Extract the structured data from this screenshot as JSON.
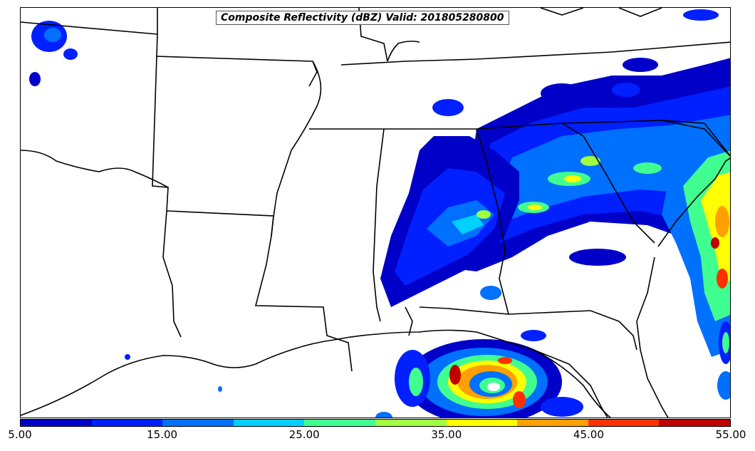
{
  "map": {
    "title": "Composite Reflectivity (dBZ) Valid: 201805280800",
    "colorbar": {
      "colors": [
        "#0000c8",
        "#0020ff",
        "#0070ff",
        "#00d0ff",
        "#40ff90",
        "#a0ff40",
        "#ffff00",
        "#ffa000",
        "#ff3000",
        "#c00000"
      ],
      "tick_labels": [
        "5.00",
        "15.00",
        "25.00",
        "35.00",
        "45.00",
        "55.00"
      ]
    }
  }
}
